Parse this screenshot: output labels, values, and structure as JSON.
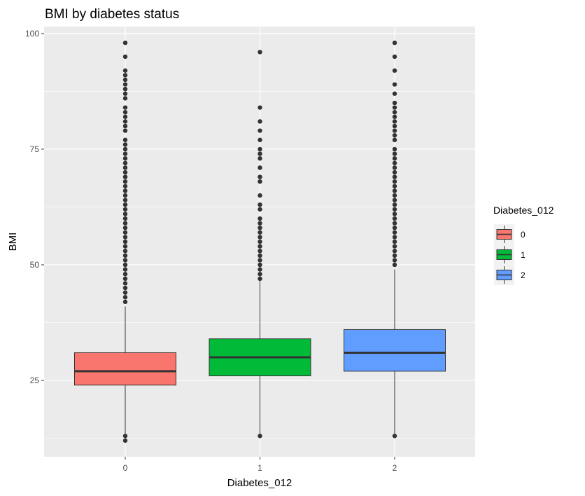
{
  "chart_data": {
    "type": "box",
    "title": "BMI by diabetes status",
    "xlabel": "Diabetes_012",
    "ylabel": "BMI",
    "categories": [
      "0",
      "1",
      "2"
    ],
    "yticks": [
      25,
      50,
      75,
      100
    ],
    "ylim": [
      8.5,
      101.5
    ],
    "grid": true,
    "legend": {
      "title": "Diabetes_012",
      "position": "right",
      "entries": [
        "0",
        "1",
        "2"
      ]
    },
    "colors": {
      "0": "#F8766D",
      "1": "#00BA38",
      "2": "#619CFF",
      "panel": "#EBEBEB",
      "grid": "#FFFFFF",
      "outline": "#333333"
    },
    "series": [
      {
        "category": "0",
        "q1": 24,
        "median": 27,
        "q3": 31,
        "whisker_low": 13.5,
        "whisker_high": 41,
        "outliers": [
          12,
          13,
          42,
          43,
          44,
          45,
          46,
          47,
          48,
          49,
          50,
          51,
          52,
          53,
          54,
          55,
          56,
          57,
          58,
          59,
          60,
          61,
          62,
          63,
          64,
          65,
          66,
          67,
          68,
          69,
          70,
          71,
          72,
          73,
          74,
          75,
          76,
          77,
          79,
          80,
          81,
          82,
          83,
          84,
          86,
          87,
          88,
          89,
          90,
          91,
          92,
          95,
          98
        ]
      },
      {
        "category": "1",
        "q1": 26,
        "median": 30,
        "q3": 34,
        "whisker_low": 13.5,
        "whisker_high": 46.5,
        "outliers": [
          13,
          47,
          48,
          49,
          50,
          51,
          52,
          53,
          54,
          55,
          56,
          57,
          58,
          59,
          60,
          62,
          63,
          65,
          68,
          69,
          71,
          73,
          74,
          75,
          77,
          79,
          81,
          84,
          96
        ]
      },
      {
        "category": "2",
        "q1": 27,
        "median": 31,
        "q3": 36,
        "whisker_low": 13.5,
        "whisker_high": 49,
        "outliers": [
          13,
          50,
          51,
          52,
          53,
          54,
          55,
          56,
          57,
          58,
          59,
          60,
          61,
          62,
          63,
          64,
          65,
          66,
          67,
          68,
          69,
          70,
          71,
          72,
          73,
          74,
          75,
          77,
          78,
          79,
          80,
          81,
          82,
          83,
          84,
          85,
          87,
          89,
          92,
          95,
          98
        ]
      }
    ]
  }
}
